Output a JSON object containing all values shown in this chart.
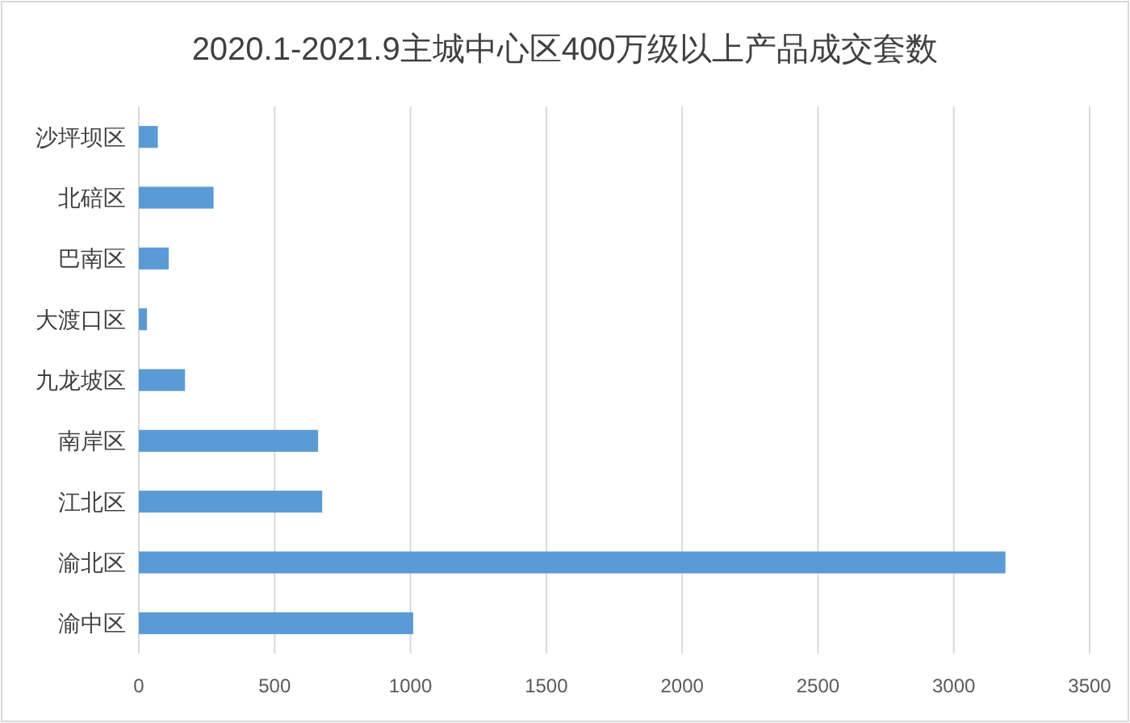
{
  "chart_data": {
    "type": "bar",
    "orientation": "horizontal",
    "title": "2020.1-2021.9主城中心区400万级以上产品成交套数",
    "categories": [
      "沙坪坝区",
      "北碚区",
      "巴南区",
      "大渡口区",
      "九龙坡区",
      "南岸区",
      "江北区",
      "渝北区",
      "渝中区"
    ],
    "values": [
      70,
      275,
      110,
      30,
      170,
      660,
      675,
      3190,
      1010
    ],
    "color": "#5b9bd5",
    "xlim": [
      0,
      3500
    ],
    "xticks": [
      0,
      500,
      1000,
      1500,
      2000,
      2500,
      3000,
      3500
    ],
    "grid": "x"
  }
}
